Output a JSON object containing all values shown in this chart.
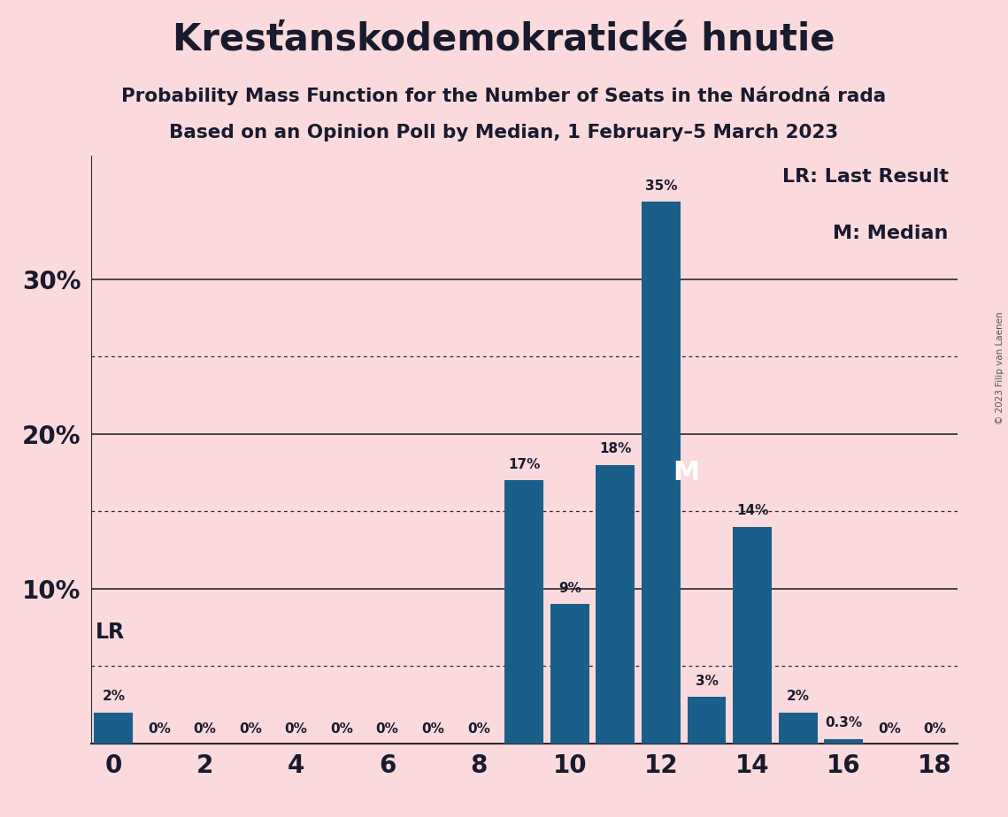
{
  "title": "Kresťanskodemokratické hnutie",
  "subtitle1": "Probability Mass Function for the Number of Seats in the Národná rada",
  "subtitle2": "Based on an Opinion Poll by Median, 1 February–5 March 2023",
  "watermark": "© 2023 Filip van Laenen",
  "seats": [
    0,
    1,
    2,
    3,
    4,
    5,
    6,
    7,
    8,
    9,
    10,
    11,
    12,
    13,
    14,
    15,
    16,
    17,
    18
  ],
  "probabilities": [
    2,
    0,
    0,
    0,
    0,
    0,
    0,
    0,
    0,
    17,
    9,
    18,
    35,
    3,
    14,
    2,
    0.3,
    0,
    0
  ],
  "bar_color": "#1a5f8a",
  "background_color": "#fadadd",
  "text_color": "#1a1a2e",
  "label_color": "#1a1a2e",
  "lr_seat": 0,
  "median_seat": 12,
  "ytick_solid": [
    10,
    20,
    30
  ],
  "ytick_dotted": [
    5,
    15,
    25
  ],
  "xlim": [
    -0.5,
    18.5
  ],
  "ylim": [
    0,
    38
  ],
  "legend_lr": "LR: Last Result",
  "legend_m": "M: Median",
  "figsize": [
    11.39,
    9.24
  ],
  "dpi": 100
}
